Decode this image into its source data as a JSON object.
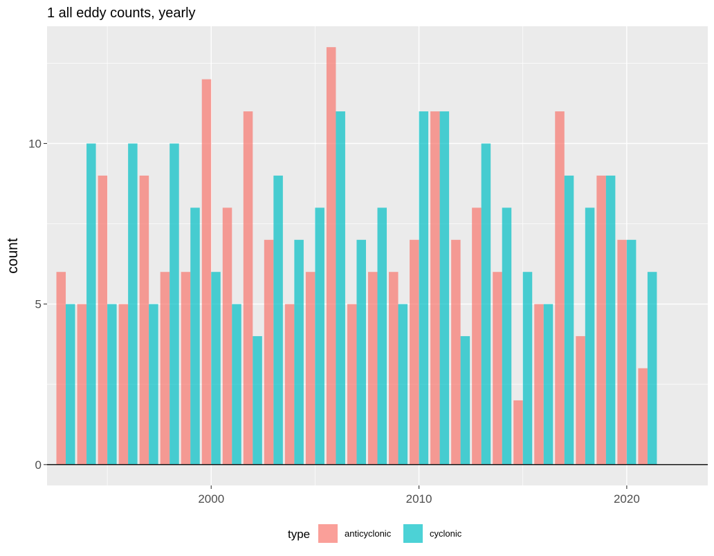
{
  "chart_data": {
    "type": "bar",
    "title": "1 all eddy counts, yearly",
    "xlabel": "",
    "ylabel": "count",
    "x": [
      1993,
      1994,
      1995,
      1996,
      1997,
      1998,
      1999,
      2000,
      2001,
      2002,
      2003,
      2004,
      2005,
      2006,
      2007,
      2008,
      2009,
      2010,
      2011,
      2012,
      2013,
      2014,
      2015,
      2016,
      2017,
      2018,
      2019,
      2020,
      2021
    ],
    "series": [
      {
        "name": "anticyclonic",
        "color": "#F8766D",
        "values": [
          6,
          5,
          9,
          5,
          9,
          6,
          6,
          12,
          8,
          11,
          7,
          5,
          6,
          13,
          5,
          6,
          6,
          7,
          11,
          7,
          8,
          6,
          2,
          5,
          11,
          4,
          9,
          7,
          3
        ]
      },
      {
        "name": "cyclonic",
        "color": "#00BFC4",
        "values": [
          5,
          10,
          5,
          10,
          5,
          10,
          8,
          6,
          5,
          4,
          9,
          7,
          8,
          11,
          7,
          8,
          5,
          11,
          11,
          4,
          10,
          8,
          6,
          5,
          9,
          8,
          9,
          7,
          6
        ]
      }
    ],
    "xlim": [
      1992.1,
      2023.9
    ],
    "ylim": [
      -0.65,
      13.65
    ],
    "x_ticks": [
      2000,
      2010,
      2020
    ],
    "x_tick_labels": [
      "2000",
      "2010",
      "2020"
    ],
    "y_ticks": [
      0,
      5,
      10
    ],
    "y_tick_labels": [
      "0",
      "5",
      "10"
    ],
    "grid": true,
    "legend": {
      "title": "type",
      "position": "bottom",
      "labels": [
        "anticyclonic",
        "cyclonic"
      ]
    },
    "colors": {
      "panel_background": "#EBEBEB",
      "gridline": "#FFFFFF",
      "zero_line": "#000000"
    }
  }
}
